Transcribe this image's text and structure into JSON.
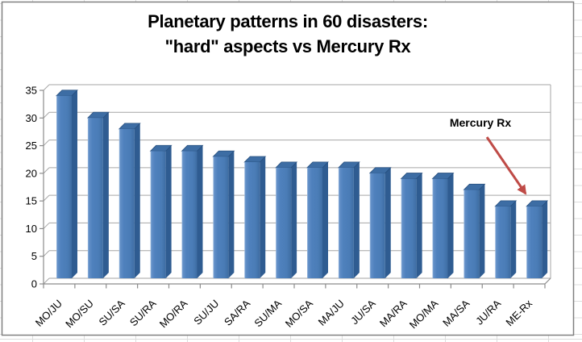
{
  "chart_data": {
    "type": "bar",
    "style": "excel-3d-column",
    "title": "Planetary patterns in 60 disasters: \"hard\" aspects vs Mercury Rx",
    "title_lines": [
      "Planetary patterns in 60 disasters:",
      "\"hard\" aspects vs Mercury Rx"
    ],
    "categories": [
      "MO/JU",
      "MO/SU",
      "SU/SA",
      "SU/RA",
      "MO/RA",
      "SU/JU",
      "SA/RA",
      "SU/MA",
      "MO/SA",
      "MA/JU",
      "JU/SA",
      "MA/RA",
      "MO/MA",
      "MA/SA",
      "JU/RA",
      "ME-Rx"
    ],
    "values": [
      33,
      29,
      27,
      23,
      23,
      22,
      21,
      20,
      20,
      20,
      19,
      18,
      18,
      16,
      13,
      13
    ],
    "xlabel": "",
    "ylabel": "",
    "ylim": [
      0,
      35
    ],
    "yticks": [
      0,
      5,
      10,
      15,
      20,
      25,
      30,
      35
    ],
    "grid": true,
    "legend": false,
    "annotation": {
      "text": "Mercury Rx",
      "target_category": "ME-Rx"
    },
    "colors": {
      "bar_front": "#4f81bd",
      "bar_front_highlight": "#a3c0e2",
      "bar_front_shade": "#3e6da3",
      "bar_top": "#3d6da4",
      "bar_side": "#2f5c91",
      "bar_edge": "#274f7e",
      "gridline": "#a6a6a6",
      "axis": "#8c8c8c",
      "arrow": "#bf4b47",
      "text": "#000000",
      "chart_border": "#808080",
      "worksheet_gridline": "#dcdcdc",
      "background": "#ffffff"
    }
  }
}
